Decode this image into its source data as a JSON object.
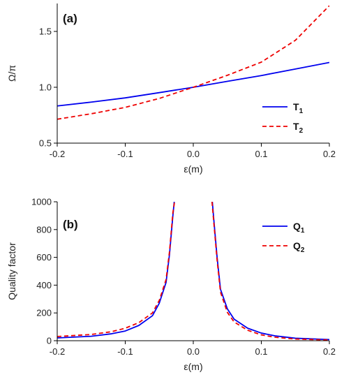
{
  "chart_data": [
    {
      "type": "line",
      "panel_label": "(a)",
      "xlabel": "ε(m)",
      "ylabel": "Ω/π",
      "xlim": [
        -0.2,
        0.2
      ],
      "ylim": [
        0.5,
        1.75
      ],
      "xticks": [
        "-0.2",
        "-0.1",
        "0.0",
        "0.1",
        "0.2"
      ],
      "xtick_values": [
        -0.2,
        -0.1,
        0.0,
        0.1,
        0.2
      ],
      "yticks": [
        "0.5",
        "1.0",
        "1.5"
      ],
      "ytick_values": [
        0.5,
        1.0,
        1.5
      ],
      "legend_position": "bottom-right",
      "series": [
        {
          "name": "T",
          "subscript": "1",
          "color": "#0000ee",
          "style": "solid",
          "x": [
            -0.2,
            -0.15,
            -0.1,
            -0.05,
            0.0,
            0.05,
            0.1,
            0.15,
            0.2
          ],
          "y": [
            0.833,
            0.867,
            0.905,
            0.952,
            1.0,
            1.053,
            1.105,
            1.163,
            1.222
          ]
        },
        {
          "name": "T",
          "subscript": "2",
          "color": "#ee0000",
          "style": "dashed",
          "x": [
            -0.2,
            -0.15,
            -0.1,
            -0.05,
            0.0,
            0.05,
            0.1,
            0.15,
            0.2
          ],
          "y": [
            0.714,
            0.763,
            0.82,
            0.9,
            1.0,
            1.107,
            1.225,
            1.42,
            1.73
          ]
        }
      ]
    },
    {
      "type": "line",
      "panel_label": "(b)",
      "xlabel": "ε(m)",
      "ylabel": "Quality factor",
      "xlim": [
        -0.2,
        0.2
      ],
      "ylim": [
        0,
        1000
      ],
      "xticks": [
        "-0.2",
        "-0.1",
        "0.0",
        "0.1",
        "0.2"
      ],
      "xtick_values": [
        -0.2,
        -0.1,
        0.0,
        0.1,
        0.2
      ],
      "yticks": [
        "0",
        "200",
        "400",
        "600",
        "800",
        "1000"
      ],
      "ytick_values": [
        0,
        200,
        400,
        600,
        800,
        1000
      ],
      "legend_position": "top-right",
      "series": [
        {
          "name": "Q",
          "subscript": "1",
          "color": "#0000ee",
          "style": "solid",
          "x": [
            -0.2,
            -0.15,
            -0.12,
            -0.1,
            -0.08,
            -0.06,
            -0.05,
            -0.04,
            -0.035,
            -0.03,
            -0.028
          ],
          "y": [
            20,
            32,
            50,
            70,
            110,
            180,
            270,
            420,
            620,
            900,
            1000
          ],
          "x2": [
            0.028,
            0.03,
            0.035,
            0.04,
            0.05,
            0.06,
            0.08,
            0.1,
            0.12,
            0.15,
            0.2
          ],
          "y2": [
            1000,
            880,
            600,
            370,
            230,
            155,
            90,
            55,
            35,
            18,
            8
          ]
        },
        {
          "name": "Q",
          "subscript": "2",
          "color": "#ee0000",
          "style": "dashed",
          "x": [
            -0.2,
            -0.15,
            -0.12,
            -0.1,
            -0.08,
            -0.06,
            -0.05,
            -0.04,
            -0.035,
            -0.03,
            -0.0275
          ],
          "y": [
            30,
            45,
            65,
            90,
            130,
            200,
            290,
            440,
            640,
            920,
            1000
          ],
          "x2": [
            0.0275,
            0.03,
            0.035,
            0.04,
            0.05,
            0.06,
            0.08,
            0.1,
            0.12,
            0.15,
            0.2
          ],
          "y2": [
            1000,
            860,
            580,
            350,
            205,
            135,
            75,
            42,
            25,
            12,
            5
          ]
        }
      ]
    }
  ]
}
